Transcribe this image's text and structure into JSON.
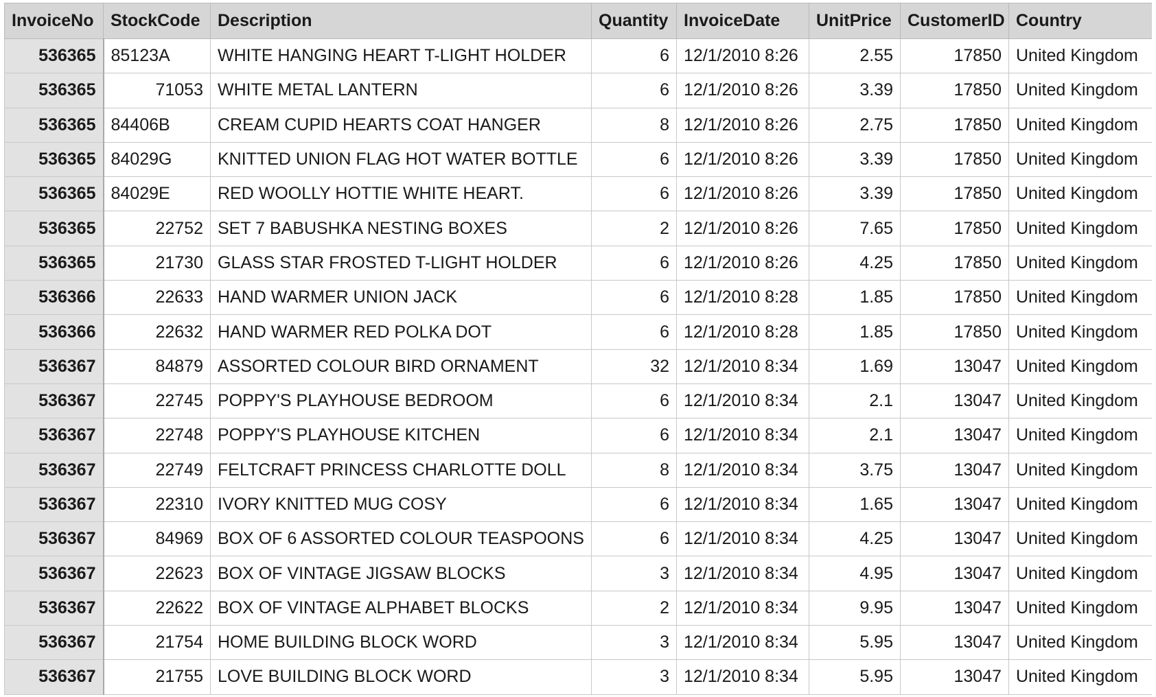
{
  "table": {
    "columns": [
      "InvoiceNo",
      "StockCode",
      "Description",
      "Quantity",
      "InvoiceDate",
      "UnitPrice",
      "CustomerID",
      "Country"
    ],
    "rows": [
      [
        "536365",
        "85123A",
        "WHITE HANGING HEART T-LIGHT HOLDER",
        "6",
        "12/1/2010 8:26",
        "2.55",
        "17850",
        "United Kingdom"
      ],
      [
        "536365",
        "71053",
        "WHITE METAL LANTERN",
        "6",
        "12/1/2010 8:26",
        "3.39",
        "17850",
        "United Kingdom"
      ],
      [
        "536365",
        "84406B",
        "CREAM CUPID HEARTS COAT HANGER",
        "8",
        "12/1/2010 8:26",
        "2.75",
        "17850",
        "United Kingdom"
      ],
      [
        "536365",
        "84029G",
        "KNITTED UNION FLAG HOT WATER BOTTLE",
        "6",
        "12/1/2010 8:26",
        "3.39",
        "17850",
        "United Kingdom"
      ],
      [
        "536365",
        "84029E",
        "RED WOOLLY HOTTIE WHITE HEART.",
        "6",
        "12/1/2010 8:26",
        "3.39",
        "17850",
        "United Kingdom"
      ],
      [
        "536365",
        "22752",
        "SET 7 BABUSHKA NESTING BOXES",
        "2",
        "12/1/2010 8:26",
        "7.65",
        "17850",
        "United Kingdom"
      ],
      [
        "536365",
        "21730",
        "GLASS STAR FROSTED T-LIGHT HOLDER",
        "6",
        "12/1/2010 8:26",
        "4.25",
        "17850",
        "United Kingdom"
      ],
      [
        "536366",
        "22633",
        "HAND WARMER UNION JACK",
        "6",
        "12/1/2010 8:28",
        "1.85",
        "17850",
        "United Kingdom"
      ],
      [
        "536366",
        "22632",
        "HAND WARMER RED POLKA DOT",
        "6",
        "12/1/2010 8:28",
        "1.85",
        "17850",
        "United Kingdom"
      ],
      [
        "536367",
        "84879",
        "ASSORTED COLOUR BIRD ORNAMENT",
        "32",
        "12/1/2010 8:34",
        "1.69",
        "13047",
        "United Kingdom"
      ],
      [
        "536367",
        "22745",
        "POPPY'S PLAYHOUSE BEDROOM",
        "6",
        "12/1/2010 8:34",
        "2.1",
        "13047",
        "United Kingdom"
      ],
      [
        "536367",
        "22748",
        "POPPY'S PLAYHOUSE KITCHEN",
        "6",
        "12/1/2010 8:34",
        "2.1",
        "13047",
        "United Kingdom"
      ],
      [
        "536367",
        "22749",
        "FELTCRAFT PRINCESS CHARLOTTE DOLL",
        "8",
        "12/1/2010 8:34",
        "3.75",
        "13047",
        "United Kingdom"
      ],
      [
        "536367",
        "22310",
        "IVORY KNITTED MUG COSY",
        "6",
        "12/1/2010 8:34",
        "1.65",
        "13047",
        "United Kingdom"
      ],
      [
        "536367",
        "84969",
        "BOX OF 6 ASSORTED COLOUR TEASPOONS",
        "6",
        "12/1/2010 8:34",
        "4.25",
        "13047",
        "United Kingdom"
      ],
      [
        "536367",
        "22623",
        "BOX OF VINTAGE JIGSAW BLOCKS",
        "3",
        "12/1/2010 8:34",
        "4.95",
        "13047",
        "United Kingdom"
      ],
      [
        "536367",
        "22622",
        "BOX OF VINTAGE ALPHABET BLOCKS",
        "2",
        "12/1/2010 8:34",
        "9.95",
        "13047",
        "United Kingdom"
      ],
      [
        "536367",
        "21754",
        "HOME BUILDING BLOCK WORD",
        "3",
        "12/1/2010 8:34",
        "5.95",
        "13047",
        "United Kingdom"
      ],
      [
        "536367",
        "21755",
        "LOVE BUILDING BLOCK WORD",
        "3",
        "12/1/2010 8:34",
        "5.95",
        "13047",
        "United Kingdom"
      ]
    ]
  }
}
